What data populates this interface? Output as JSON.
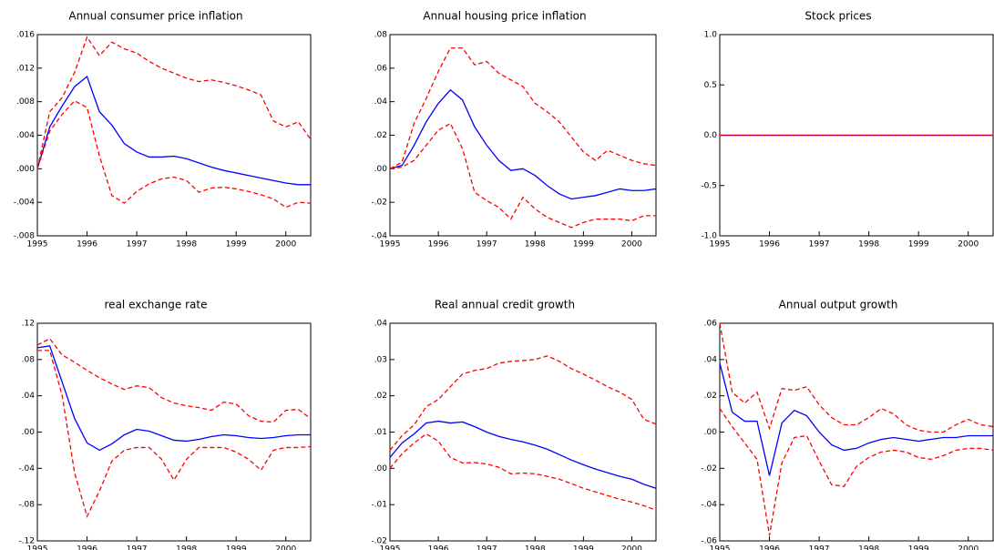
{
  "chart_data": [
    {
      "type": "line",
      "title": "Annual consumer price inflation",
      "x": [
        1995,
        1995.25,
        1995.5,
        1995.75,
        1996,
        1996.25,
        1996.5,
        1996.75,
        1997,
        1997.25,
        1997.5,
        1997.75,
        1998,
        1998.25,
        1998.5,
        1998.75,
        1999,
        1999.25,
        1999.5,
        1999.75,
        2000,
        2000.25,
        2000.5
      ],
      "xlim": [
        1995,
        2000.5
      ],
      "xticks": [
        1995,
        1996,
        1997,
        1998,
        1999,
        2000
      ],
      "ylim": [
        -0.008,
        0.016
      ],
      "yticks": [
        {
          "value": 0.016,
          "label": ".016"
        },
        {
          "value": 0.012,
          "label": ".012"
        },
        {
          "value": 0.008,
          "label": ".008"
        },
        {
          "value": 0.004,
          "label": ".004"
        },
        {
          "value": 0,
          "label": ".000"
        },
        {
          "value": -0.004,
          "label": "-.004"
        },
        {
          "value": -0.008,
          "label": "-.008"
        }
      ],
      "series": [
        {
          "color": "#0000ff",
          "line_style": "solid",
          "values": [
            0,
            0.005,
            0.0075,
            0.0098,
            0.011,
            0.0068,
            0.0052,
            0.003,
            0.002,
            0.0014,
            0.0014,
            0.0015,
            0.0012,
            0.0007,
            0.0002,
            -0.0002,
            -0.0005,
            -0.0008,
            -0.0011,
            -0.0014,
            -0.0017,
            -0.0019,
            -0.0019
          ]
        },
        {
          "color": "#ff0000",
          "line_style": "dashed",
          "values": [
            0,
            0.0068,
            0.0085,
            0.0115,
            0.0157,
            0.0135,
            0.0151,
            0.0143,
            0.0138,
            0.0128,
            0.012,
            0.0114,
            0.0108,
            0.0104,
            0.0106,
            0.0103,
            0.0099,
            0.0094,
            0.0088,
            0.0057,
            0.005,
            0.0056,
            0.0035
          ]
        },
        {
          "color": "#ff0000",
          "line_style": "dashed",
          "values": [
            0,
            0.0045,
            0.0065,
            0.0081,
            0.0073,
            0.0015,
            -0.0032,
            -0.0041,
            -0.0027,
            -0.0018,
            -0.0012,
            -0.001,
            -0.0014,
            -0.0028,
            -0.0023,
            -0.0022,
            -0.0024,
            -0.0027,
            -0.0031,
            -0.0036,
            -0.0046,
            -0.004,
            -0.0041
          ]
        }
      ]
    },
    {
      "type": "line",
      "title": "Annual housing price inflation",
      "x": [
        1995,
        1995.25,
        1995.5,
        1995.75,
        1996,
        1996.25,
        1996.5,
        1996.75,
        1997,
        1997.25,
        1997.5,
        1997.75,
        1998,
        1998.25,
        1998.5,
        1998.75,
        1999,
        1999.25,
        1999.5,
        1999.75,
        2000,
        2000.25,
        2000.5
      ],
      "xlim": [
        1995,
        2000.5
      ],
      "xticks": [
        1995,
        1996,
        1997,
        1998,
        1999,
        2000
      ],
      "ylim": [
        -0.04,
        0.08
      ],
      "yticks": [
        {
          "value": 0.08,
          "label": ".08"
        },
        {
          "value": 0.06,
          "label": ".06"
        },
        {
          "value": 0.04,
          "label": ".04"
        },
        {
          "value": 0.02,
          "label": ".02"
        },
        {
          "value": 0,
          "label": ".00"
        },
        {
          "value": -0.02,
          "label": "-.02"
        },
        {
          "value": -0.04,
          "label": "-.04"
        }
      ],
      "series": [
        {
          "color": "#0000ff",
          "line_style": "solid",
          "values": [
            0,
            0.002,
            0.014,
            0.028,
            0.039,
            0.047,
            0.041,
            0.025,
            0.014,
            0.005,
            -0.001,
            0,
            -0.004,
            -0.01,
            -0.015,
            -0.018,
            -0.017,
            -0.016,
            -0.014,
            -0.012,
            -0.013,
            -0.013,
            -0.012
          ]
        },
        {
          "color": "#ff0000",
          "line_style": "dashed",
          "values": [
            0,
            0.004,
            0.027,
            0.042,
            0.058,
            0.072,
            0.072,
            0.062,
            0.064,
            0.057,
            0.053,
            0.049,
            0.039,
            0.034,
            0.028,
            0.019,
            0.01,
            0.005,
            0.011,
            0.008,
            0.005,
            0.003,
            0.002
          ]
        },
        {
          "color": "#ff0000",
          "line_style": "dashed",
          "values": [
            0,
            0.001,
            0.005,
            0.014,
            0.023,
            0.027,
            0.012,
            -0.014,
            -0.019,
            -0.023,
            -0.03,
            -0.017,
            -0.024,
            -0.029,
            -0.032,
            -0.035,
            -0.032,
            -0.03,
            -0.03,
            -0.03,
            -0.031,
            -0.028,
            -0.028
          ]
        }
      ]
    },
    {
      "type": "line",
      "title": "Stock prices",
      "x": [
        1995,
        1995.25,
        1995.5,
        1995.75,
        1996,
        1996.25,
        1996.5,
        1996.75,
        1997,
        1997.25,
        1997.5,
        1997.75,
        1998,
        1998.25,
        1998.5,
        1998.75,
        1999,
        1999.25,
        1999.5,
        1999.75,
        2000,
        2000.25,
        2000.5
      ],
      "xlim": [
        1995,
        2000.5
      ],
      "xticks": [
        1995,
        1996,
        1997,
        1998,
        1999,
        2000
      ],
      "ylim": [
        -1,
        1
      ],
      "yticks": [
        {
          "value": 1,
          "label": "1.0"
        },
        {
          "value": 0.5,
          "label": "0.5"
        },
        {
          "value": 0,
          "label": "0.0"
        },
        {
          "value": -0.5,
          "label": "-0.5"
        },
        {
          "value": -1,
          "label": "-1.0"
        }
      ],
      "series": [
        {
          "color": "#0000ff",
          "line_style": "solid",
          "values": [
            0,
            0,
            0,
            0,
            0,
            0,
            0,
            0,
            0,
            0,
            0,
            0,
            0,
            0,
            0,
            0,
            0,
            0,
            0,
            0,
            0,
            0,
            0
          ]
        },
        {
          "color": "#ff0000",
          "line_style": "dashed",
          "values": [
            0,
            0,
            0,
            0,
            0,
            0,
            0,
            0,
            0,
            0,
            0,
            0,
            0,
            0,
            0,
            0,
            0,
            0,
            0,
            0,
            0,
            0,
            0
          ]
        },
        {
          "color": "#ff0000",
          "line_style": "dashed",
          "values": [
            0,
            0,
            0,
            0,
            0,
            0,
            0,
            0,
            0,
            0,
            0,
            0,
            0,
            0,
            0,
            0,
            0,
            0,
            0,
            0,
            0,
            0,
            0
          ]
        }
      ]
    },
    {
      "type": "line",
      "title": "real exchange rate",
      "x": [
        1995,
        1995.25,
        1995.5,
        1995.75,
        1996,
        1996.25,
        1996.5,
        1996.75,
        1997,
        1997.25,
        1997.5,
        1997.75,
        1998,
        1998.25,
        1998.5,
        1998.75,
        1999,
        1999.25,
        1999.5,
        1999.75,
        2000,
        2000.25,
        2000.5
      ],
      "xlim": [
        1995,
        2000.5
      ],
      "xticks": [
        1995,
        1996,
        1997,
        1998,
        1999,
        2000
      ],
      "ylim": [
        -0.12,
        0.12
      ],
      "yticks": [
        {
          "value": 0.12,
          "label": ".12"
        },
        {
          "value": 0.08,
          "label": ".08"
        },
        {
          "value": 0.04,
          "label": ".04"
        },
        {
          "value": 0,
          "label": ".00"
        },
        {
          "value": -0.04,
          "label": "-.04"
        },
        {
          "value": -0.08,
          "label": "-.08"
        },
        {
          "value": -0.12,
          "label": "-.12"
        }
      ],
      "series": [
        {
          "color": "#0000ff",
          "line_style": "solid",
          "values": [
            0.093,
            0.095,
            0.055,
            0.015,
            -0.012,
            -0.02,
            -0.013,
            -0.003,
            0.003,
            0.001,
            -0.004,
            -0.009,
            -0.01,
            -0.008,
            -0.005,
            -0.003,
            -0.004,
            -0.006,
            -0.007,
            -0.006,
            -0.004,
            -0.003,
            -0.003
          ]
        },
        {
          "color": "#ff0000",
          "line_style": "dashed",
          "values": [
            0.096,
            0.103,
            0.085,
            0.077,
            0.068,
            0.06,
            0.053,
            0.047,
            0.051,
            0.049,
            0.038,
            0.032,
            0.029,
            0.027,
            0.024,
            0.033,
            0.031,
            0.018,
            0.012,
            0.011,
            0.024,
            0.025,
            0.015
          ]
        },
        {
          "color": "#ff0000",
          "line_style": "dashed",
          "values": [
            0.09,
            0.09,
            0.04,
            -0.045,
            -0.093,
            -0.065,
            -0.032,
            -0.02,
            -0.017,
            -0.017,
            -0.03,
            -0.053,
            -0.03,
            -0.017,
            -0.017,
            -0.017,
            -0.022,
            -0.03,
            -0.042,
            -0.02,
            -0.017,
            -0.017,
            -0.016
          ]
        }
      ]
    },
    {
      "type": "line",
      "title": "Real annual credit growth",
      "x": [
        1995,
        1995.25,
        1995.5,
        1995.75,
        1996,
        1996.25,
        1996.5,
        1996.75,
        1997,
        1997.25,
        1997.5,
        1997.75,
        1998,
        1998.25,
        1998.5,
        1998.75,
        1999,
        1999.25,
        1999.5,
        1999.75,
        2000,
        2000.25,
        2000.5
      ],
      "xlim": [
        1995,
        2000.5
      ],
      "xticks": [
        1995,
        1996,
        1997,
        1998,
        1999,
        2000
      ],
      "ylim": [
        -0.02,
        0.04
      ],
      "yticks": [
        {
          "value": 0.04,
          "label": ".04"
        },
        {
          "value": 0.03,
          "label": ".03"
        },
        {
          "value": 0.02,
          "label": ".02"
        },
        {
          "value": 0.01,
          "label": ".01"
        },
        {
          "value": 0,
          "label": ".00"
        },
        {
          "value": -0.01,
          "label": "-.01"
        },
        {
          "value": -0.02,
          "label": "-.02"
        }
      ],
      "series": [
        {
          "color": "#0000ff",
          "line_style": "solid",
          "values": [
            0.003,
            0.007,
            0.0095,
            0.0125,
            0.013,
            0.0125,
            0.0128,
            0.0115,
            0.01,
            0.0088,
            0.008,
            0.0073,
            0.0064,
            0.0053,
            0.0038,
            0.0023,
            0.001,
            -0.0002,
            -0.0012,
            -0.0022,
            -0.003,
            -0.0044,
            -0.0055
          ]
        },
        {
          "color": "#ff0000",
          "line_style": "dashed",
          "values": [
            0.005,
            0.009,
            0.012,
            0.017,
            0.019,
            0.0225,
            0.026,
            0.027,
            0.0275,
            0.029,
            0.0295,
            0.0297,
            0.03,
            0.031,
            0.0295,
            0.0275,
            0.026,
            0.0243,
            0.0225,
            0.021,
            0.019,
            0.0135,
            0.0122
          ]
        },
        {
          "color": "#ff0000",
          "line_style": "dashed",
          "values": [
            0,
            0.004,
            0.007,
            0.0095,
            0.0075,
            0.003,
            0.0015,
            0.0016,
            0.0012,
            0.0003,
            -0.0015,
            -0.0013,
            -0.0015,
            -0.0022,
            -0.003,
            -0.0042,
            -0.0055,
            -0.0065,
            -0.0075,
            -0.0085,
            -0.0093,
            -0.0103,
            -0.0115
          ]
        }
      ]
    },
    {
      "type": "line",
      "title": "Annual output growth",
      "x": [
        1995,
        1995.25,
        1995.5,
        1995.75,
        1996,
        1996.25,
        1996.5,
        1996.75,
        1997,
        1997.25,
        1997.5,
        1997.75,
        1998,
        1998.25,
        1998.5,
        1998.75,
        1999,
        1999.25,
        1999.5,
        1999.75,
        2000,
        2000.25,
        2000.5
      ],
      "xlim": [
        1995,
        2000.5
      ],
      "xticks": [
        1995,
        1996,
        1997,
        1998,
        1999,
        2000
      ],
      "ylim": [
        -0.06,
        0.06
      ],
      "yticks": [
        {
          "value": 0.06,
          "label": ".06"
        },
        {
          "value": 0.04,
          "label": ".04"
        },
        {
          "value": 0.02,
          "label": ".02"
        },
        {
          "value": 0,
          "label": ".00"
        },
        {
          "value": -0.02,
          "label": "-.02"
        },
        {
          "value": -0.04,
          "label": "-.04"
        },
        {
          "value": -0.06,
          "label": "-.06"
        }
      ],
      "series": [
        {
          "color": "#0000ff",
          "line_style": "solid",
          "values": [
            0.038,
            0.011,
            0.006,
            0.006,
            -0.024,
            0.005,
            0.012,
            0.009,
            0,
            -0.007,
            -0.01,
            -0.009,
            -0.006,
            -0.004,
            -0.003,
            -0.004,
            -0.005,
            -0.004,
            -0.003,
            -0.003,
            -0.002,
            -0.002,
            -0.002
          ]
        },
        {
          "color": "#ff0000",
          "line_style": "dashed",
          "values": [
            0.06,
            0.022,
            0.016,
            0.022,
            0.002,
            0.024,
            0.023,
            0.025,
            0.015,
            0.008,
            0.004,
            0.004,
            0.008,
            0.013,
            0.01,
            0.004,
            0.001,
            0,
            0,
            0.004,
            0.007,
            0.004,
            0.003
          ]
        },
        {
          "color": "#ff0000",
          "line_style": "dashed",
          "values": [
            0.013,
            0.003,
            -0.006,
            -0.015,
            -0.057,
            -0.017,
            -0.003,
            -0.002,
            -0.016,
            -0.029,
            -0.03,
            -0.019,
            -0.014,
            -0.011,
            -0.01,
            -0.011,
            -0.014,
            -0.015,
            -0.013,
            -0.01,
            -0.009,
            -0.009,
            -0.01
          ]
        }
      ]
    }
  ]
}
